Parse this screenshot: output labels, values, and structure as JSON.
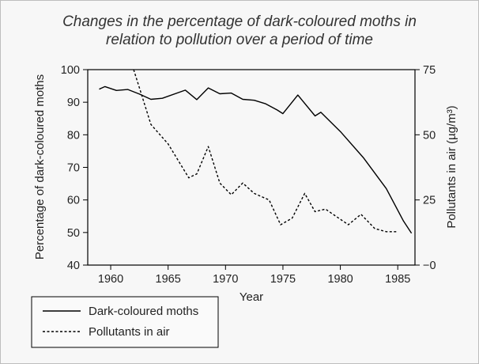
{
  "chart_data": {
    "type": "line",
    "title": "Changes in the percentage of dark-coloured moths in relation to pollution over a period of time",
    "title_lines": [
      "Changes in the percentage of dark-coloured moths in",
      "relation to pollution over a period of time"
    ],
    "xlabel": "Year",
    "ylabel": "Percentage of dark-coloured moths",
    "ylabel_right": "Pollutants in air (µg/m³)",
    "xlim": [
      1958,
      1986.5
    ],
    "ylim": [
      40,
      100
    ],
    "ylim_right": [
      0,
      75
    ],
    "x_ticks": [
      1960,
      1965,
      1970,
      1975,
      1980,
      1985
    ],
    "y_ticks": [
      40,
      50,
      60,
      70,
      80,
      90,
      100
    ],
    "y_ticks_right": [
      0,
      25,
      50,
      75
    ],
    "grid": false,
    "legend_position": "bottom-left",
    "series": [
      {
        "name": "Dark-coloured moths",
        "axis": "left",
        "style": "solid",
        "color": "#000000",
        "points": [
          [
            1959.0,
            94.0
          ],
          [
            1959.5,
            94.8
          ],
          [
            1960.5,
            93.6
          ],
          [
            1961.5,
            93.9
          ],
          [
            1962.5,
            92.5
          ],
          [
            1963.5,
            90.9
          ],
          [
            1964.5,
            91.2
          ],
          [
            1966.5,
            93.7
          ],
          [
            1967.5,
            90.8
          ],
          [
            1968.5,
            94.4
          ],
          [
            1969.5,
            92.6
          ],
          [
            1970.5,
            92.8
          ],
          [
            1971.5,
            90.9
          ],
          [
            1972.5,
            90.6
          ],
          [
            1973.5,
            89.5
          ],
          [
            1974.5,
            87.6
          ],
          [
            1975.0,
            86.5
          ],
          [
            1976.3,
            92.2
          ],
          [
            1977.8,
            85.8
          ],
          [
            1978.3,
            86.9
          ],
          [
            1980.0,
            81.0
          ],
          [
            1982.0,
            73.0
          ],
          [
            1984.0,
            63.5
          ],
          [
            1985.5,
            53.5
          ],
          [
            1986.2,
            49.8
          ]
        ]
      },
      {
        "name": "Pollutants in air",
        "axis": "right",
        "style": "dashed",
        "color": "#000000",
        "points": [
          [
            1962.0,
            75.0
          ],
          [
            1962.5,
            68.0
          ],
          [
            1963.5,
            54.0
          ],
          [
            1965.0,
            46.5
          ],
          [
            1966.8,
            33.5
          ],
          [
            1967.5,
            35.0
          ],
          [
            1968.5,
            45.5
          ],
          [
            1969.5,
            31.5
          ],
          [
            1970.5,
            27.0
          ],
          [
            1971.5,
            31.5
          ],
          [
            1972.5,
            27.5
          ],
          [
            1973.8,
            25.0
          ],
          [
            1974.8,
            15.5
          ],
          [
            1975.8,
            18.0
          ],
          [
            1976.9,
            27.5
          ],
          [
            1977.8,
            20.5
          ],
          [
            1978.7,
            21.5
          ],
          [
            1980.7,
            15.5
          ],
          [
            1981.8,
            19.5
          ],
          [
            1983.0,
            14.0
          ],
          [
            1984.0,
            12.8
          ],
          [
            1985.0,
            12.8
          ]
        ]
      }
    ]
  }
}
